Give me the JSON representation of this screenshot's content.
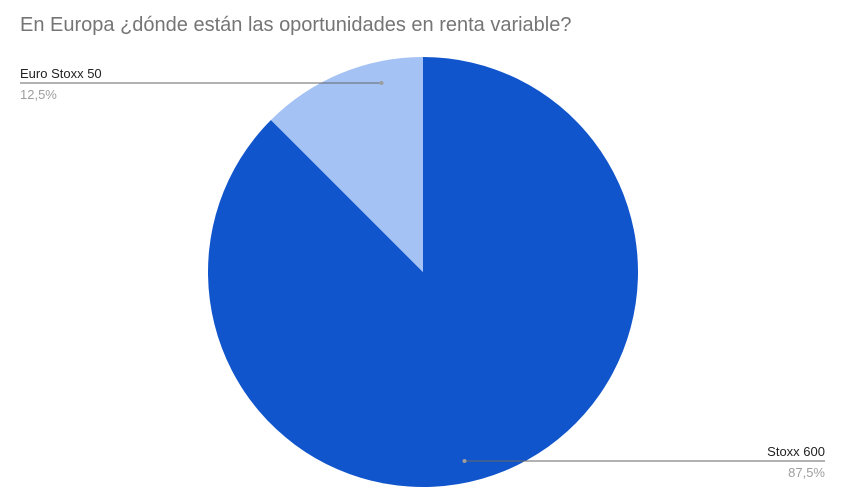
{
  "chart_data": {
    "type": "pie",
    "title": "En Europa ¿dónde están las oportunidades en renta variable?",
    "slices": [
      {
        "label": "Stoxx 600",
        "value": 87.5,
        "percent_label": "87,5%",
        "color": "#1155cc"
      },
      {
        "label": "Euro Stoxx 50",
        "value": 12.5,
        "percent_label": "12,5%",
        "color": "#a4c2f4"
      }
    ],
    "legend": "labels"
  }
}
